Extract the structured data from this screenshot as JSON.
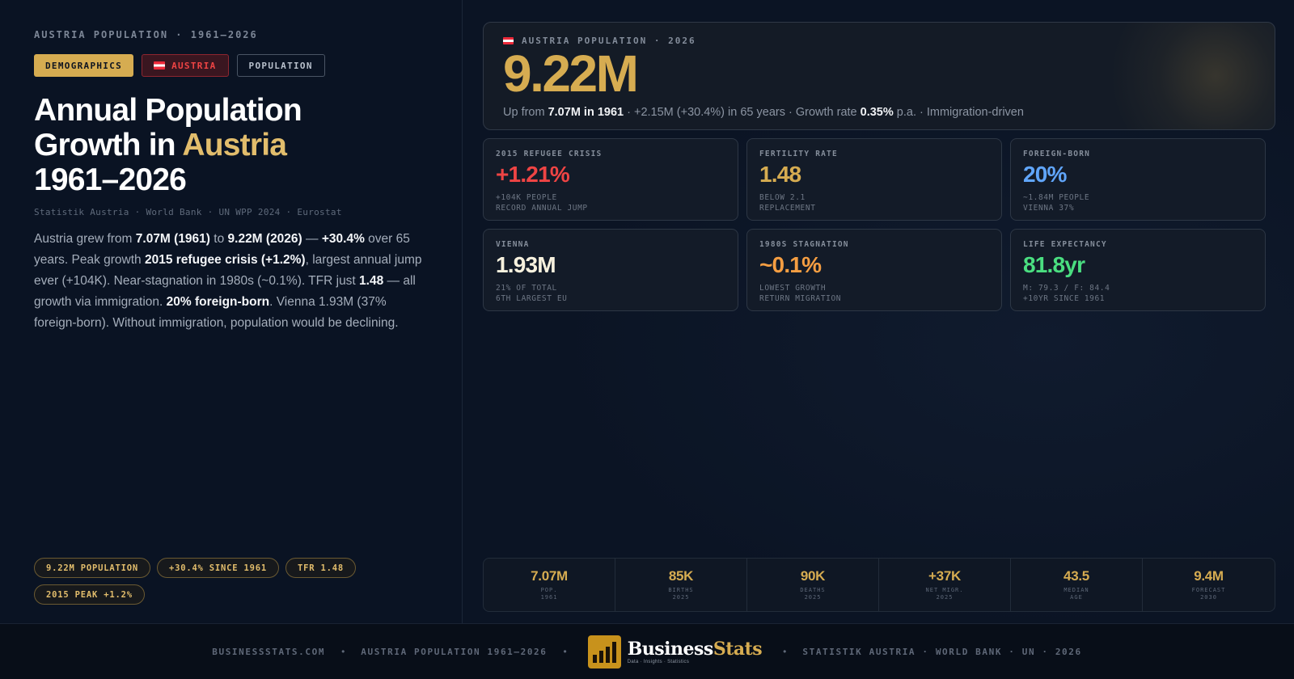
{
  "left": {
    "eyebrow": "AUSTRIA POPULATION · 1961–2026",
    "tags": {
      "demographics": "DEMOGRAPHICS",
      "austria": "AUSTRIA",
      "population": "POPULATION"
    },
    "title": {
      "line1": "Annual Population",
      "line2_pre": "Growth in ",
      "line2_accent": "Austria",
      "line3": "1961–2026"
    },
    "sources": "Statistik Austria · World Bank · UN WPP 2024 · Eurostat",
    "desc": {
      "t1": "Austria grew from ",
      "b1": "7.07M (1961)",
      "t2": " to ",
      "b2": "9.22M (2026)",
      "t3": " — ",
      "b3": "+30.4%",
      "t4": " over 65 years. Peak growth ",
      "b4": "2015 refugee crisis (+1.2%)",
      "t5": ", largest annual jump ever (+104K). Near-stagnation in 1980s (~0.1%). TFR just ",
      "b5": "1.48",
      "t6": " — all growth via immigration. ",
      "b6": "20% foreign-born",
      "t7": ". Vienna 1.93M (37% foreign-born). Without immigration, population would be declining."
    },
    "chips": [
      "9.22M POPULATION",
      "+30.4% SINCE 1961",
      "TFR 1.48",
      "2015 PEAK +1.2%"
    ]
  },
  "hero": {
    "eyebrow": "AUSTRIA POPULATION · 2026",
    "value": "9.22M",
    "sub": {
      "t1": "Up from ",
      "b1": "7.07M in 1961",
      "t2": " · +2.15M (+30.4%) in 65 years · Growth rate ",
      "b2": "0.35%",
      "t3": " p.a. · Immigration-driven"
    }
  },
  "cards": [
    {
      "label": "2015 REFUGEE CRISIS",
      "value": "+1.21%",
      "color": "#ef4444",
      "note1": "+104K PEOPLE",
      "note2": "RECORD ANNUAL JUMP"
    },
    {
      "label": "FERTILITY RATE",
      "value": "1.48",
      "color": "#d6ac51",
      "note1": "BELOW 2.1",
      "note2": "REPLACEMENT"
    },
    {
      "label": "FOREIGN-BORN",
      "value": "20%",
      "color": "#60a5fa",
      "note1": "~1.84M PEOPLE",
      "note2": "VIENNA 37%"
    },
    {
      "label": "VIENNA",
      "value": "1.93M",
      "color": "#f7f1de",
      "note1": "21% OF TOTAL",
      "note2": "6TH LARGEST EU"
    },
    {
      "label": "1980S STAGNATION",
      "value": "~0.1%",
      "color": "#f59e42",
      "note1": "LOWEST GROWTH",
      "note2": "RETURN MIGRATION"
    },
    {
      "label": "LIFE EXPECTANCY",
      "value": "81.8yr",
      "color": "#4ade80",
      "note1": "M: 79.3 / F: 84.4",
      "note2": "+10YR SINCE 1961"
    }
  ],
  "stats": [
    {
      "value": "7.07M",
      "label1": "POP.",
      "label2": "1961"
    },
    {
      "value": "85K",
      "label1": "BIRTHS",
      "label2": "2025"
    },
    {
      "value": "90K",
      "label1": "DEATHS",
      "label2": "2025"
    },
    {
      "value": "+37K",
      "label1": "NET MIGR.",
      "label2": "2025"
    },
    {
      "value": "43.5",
      "label1": "MEDIAN",
      "label2": "AGE"
    },
    {
      "value": "9.4M",
      "label1": "FORECAST",
      "label2": "2030"
    }
  ],
  "footer": {
    "site": "BUSINESSSTATS.COM",
    "topic": "AUSTRIA POPULATION 1961–2026",
    "brand_a": "Business",
    "brand_b": "Stats",
    "brand_tag": "Data · Insights · Statistics",
    "sources": "STATISTIK AUSTRIA · WORLD BANK · UN · 2026",
    "separator": "•"
  }
}
